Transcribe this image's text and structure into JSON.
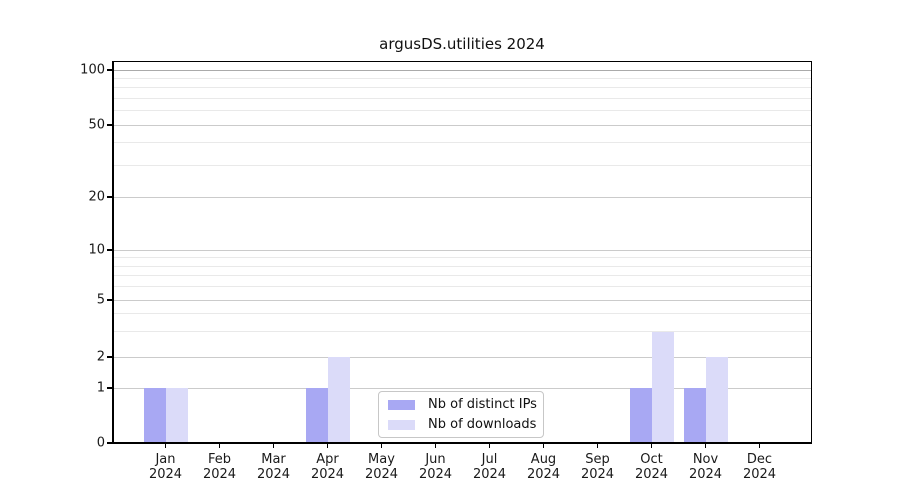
{
  "title": "argusDS.utilities 2024",
  "chart_data": {
    "type": "bar",
    "title": "argusDS.utilities 2024",
    "categories": [
      "Jan 2024",
      "Feb 2024",
      "Mar 2024",
      "Apr 2024",
      "May 2024",
      "Jun 2024",
      "Jul 2024",
      "Aug 2024",
      "Sep 2024",
      "Oct 2024",
      "Nov 2024",
      "Dec 2024"
    ],
    "x_tick_labels": [
      {
        "month": "Jan",
        "year": "2024"
      },
      {
        "month": "Feb",
        "year": "2024"
      },
      {
        "month": "Mar",
        "year": "2024"
      },
      {
        "month": "Apr",
        "year": "2024"
      },
      {
        "month": "May",
        "year": "2024"
      },
      {
        "month": "Jun",
        "year": "2024"
      },
      {
        "month": "Jul",
        "year": "2024"
      },
      {
        "month": "Aug",
        "year": "2024"
      },
      {
        "month": "Sep",
        "year": "2024"
      },
      {
        "month": "Oct",
        "year": "2024"
      },
      {
        "month": "Nov",
        "year": "2024"
      },
      {
        "month": "Dec",
        "year": "2024"
      }
    ],
    "series": [
      {
        "name": "Nb of distinct IPs",
        "color": "#a8a8f3",
        "values": [
          1,
          0,
          0,
          1,
          0,
          0,
          0,
          0,
          0,
          1,
          1,
          0
        ]
      },
      {
        "name": "Nb of downloads",
        "color": "#dbdbf9",
        "values": [
          1,
          0,
          0,
          2,
          0,
          0,
          0,
          0,
          0,
          3,
          2,
          0
        ]
      }
    ],
    "y_axis": {
      "scale": "symlog",
      "major_ticks": [
        0,
        1,
        2,
        5,
        10,
        20,
        50,
        100
      ],
      "minor_ticks": [
        3,
        4,
        6,
        7,
        8,
        9,
        30,
        40,
        60,
        70,
        80,
        90
      ],
      "range": [
        0,
        115
      ]
    },
    "xlabel": "",
    "ylabel": "",
    "grid": "horizontal, major and minor",
    "legend_position": "lower center inside axes"
  },
  "legend": {
    "items": [
      {
        "label": "Nb of distinct IPs",
        "color": "#a8a8f3"
      },
      {
        "label": "Nb of downloads",
        "color": "#dbdbf9"
      }
    ]
  },
  "colors": {
    "background": "#ffffff",
    "spine": "#000000",
    "grid_major": "#cbcbcb",
    "grid_major_top": "#aaaaaa",
    "grid_minor": "#e9e9e9",
    "tick_text": "#1a1a1a"
  }
}
